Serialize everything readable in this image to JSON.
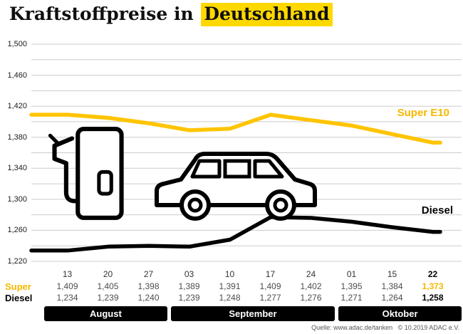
{
  "title": {
    "plain": "Kraftstoffpreise in ",
    "highlight": "Deutschland"
  },
  "colors": {
    "accent_yellow": "#FFC400",
    "highlight_yellow": "#FFD800",
    "grid": "#cccccc",
    "black": "#000000"
  },
  "chart_data": {
    "type": "line",
    "title": "Kraftstoffpreise in Deutschland",
    "ylim": [
      1220,
      1500
    ],
    "grid": true,
    "grid_step": 20,
    "yticks": [
      1500,
      1460,
      1420,
      1380,
      1340,
      1300,
      1260,
      1220
    ],
    "ytick_labels": [
      "1,500",
      "1,460",
      "1,420",
      "1,380",
      "1,340",
      "1,300",
      "1,260",
      "1,220"
    ],
    "x_tick_labels": [
      "13",
      "20",
      "27",
      "03",
      "10",
      "17",
      "24",
      "01",
      "15",
      "22"
    ],
    "month_groups": [
      {
        "label": "August",
        "span": 3
      },
      {
        "label": "September",
        "span": 4
      },
      {
        "label": "Oktober",
        "span": 3
      }
    ],
    "series": [
      {
        "name": "Super E10",
        "color": "#FFC400",
        "values": [
          1409,
          1405,
          1398,
          1389,
          1391,
          1409,
          1402,
          1395,
          1384,
          1373
        ],
        "values_display": [
          "1,409",
          "1,405",
          "1,398",
          "1,389",
          "1,391",
          "1,409",
          "1,402",
          "1,395",
          "1,384",
          "1,373"
        ]
      },
      {
        "name": "Diesel",
        "color": "#000000",
        "values": [
          1234,
          1239,
          1240,
          1239,
          1248,
          1277,
          1276,
          1271,
          1264,
          1258
        ],
        "values_display": [
          "1,234",
          "1,239",
          "1,240",
          "1,239",
          "1,248",
          "1,277",
          "1,276",
          "1,271",
          "1,264",
          "1,258"
        ]
      }
    ],
    "legend_position": "on-chart-right"
  },
  "table": {
    "row_labels": [
      "Super",
      "Diesel"
    ]
  },
  "footer": {
    "source": "Quelle: www.adac.de/tanken   © 10.2019 ADAC e.V."
  }
}
